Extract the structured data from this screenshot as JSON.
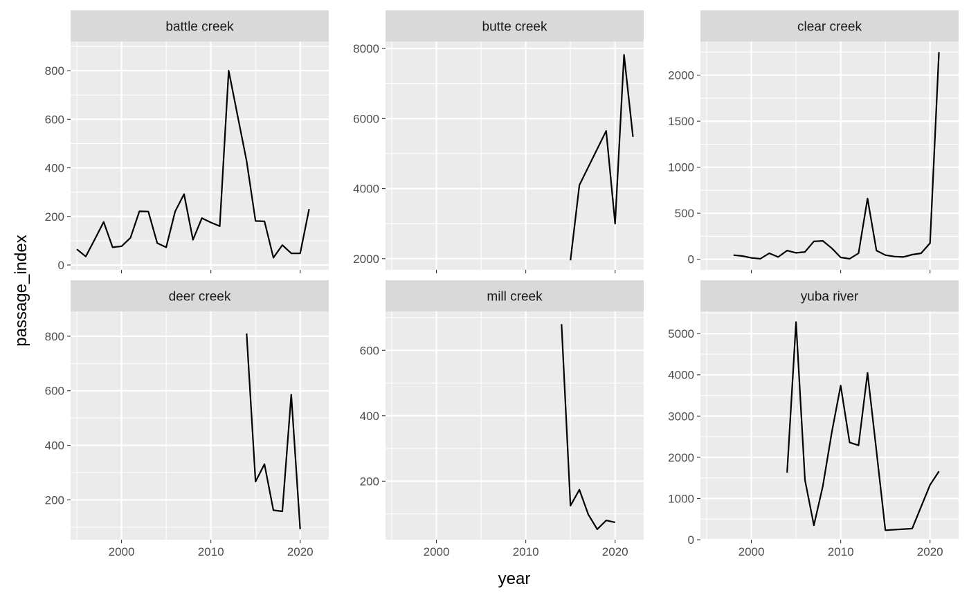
{
  "chart_data": {
    "type": "line",
    "layout": "facet_wrap",
    "xlabel": "year",
    "ylabel": "passage_index",
    "x_ticks": [
      2000,
      2010,
      2020
    ],
    "xlim": [
      1994.3,
      2023.2
    ],
    "grid": true,
    "colors": {
      "panel_bg": "#ebebeb",
      "strip_bg": "#d9d9d9",
      "grid": "#ffffff",
      "line": "#000000"
    },
    "panels": [
      {
        "title": "battle creek",
        "ylim": [
          -20,
          920
        ],
        "y_ticks": [
          0,
          200,
          400,
          600,
          800
        ],
        "series": [
          {
            "x": [
              1995,
              1996,
              1997,
              1998,
              1999,
              2000,
              2001,
              2002,
              2003,
              2004,
              2005,
              2006,
              2007,
              2008,
              2009,
              2010,
              2011,
              2012,
              2013,
              2014,
              2015,
              2016,
              2017,
              2018,
              2019,
              2020,
              2021
            ],
            "y": [
              65,
              35,
              105,
              177,
              73,
              77,
              112,
              221,
              220,
              90,
              73,
              220,
              292,
              104,
              193,
              175,
              160,
              800,
              613,
              428,
              181,
              180,
              30,
              82,
              48,
              48,
              230
            ]
          }
        ]
      },
      {
        "title": "butte creek",
        "ylim": [
          1680,
          8200
        ],
        "y_ticks": [
          2000,
          4000,
          6000,
          8000
        ],
        "series": [
          {
            "x": [
              2015,
              2016,
              2019,
              2020,
              2021,
              2022
            ],
            "y": [
              1950,
              4100,
              5650,
              3000,
              7820,
              5480
            ]
          }
        ]
      },
      {
        "title": "clear creek",
        "ylim": [
          -115,
          2365
        ],
        "y_ticks": [
          0,
          500,
          1000,
          1500,
          2000
        ],
        "series": [
          {
            "x": [
              1998,
              1999,
              2000,
              2001,
              2002,
              2003,
              2004,
              2005,
              2006,
              2007,
              2008,
              2009,
              2010,
              2011,
              2012,
              2013,
              2014,
              2015,
              2016,
              2017,
              2018,
              2019,
              2020,
              2021
            ],
            "y": [
              45,
              35,
              15,
              5,
              65,
              25,
              95,
              70,
              80,
              195,
              200,
              120,
              20,
              5,
              65,
              660,
              95,
              45,
              30,
              25,
              50,
              65,
              175,
              2250
            ]
          }
        ]
      },
      {
        "title": "deer creek",
        "ylim": [
          54,
          891
        ],
        "y_ticks": [
          200,
          400,
          600,
          800
        ],
        "series": [
          {
            "x": [
              2014,
              2015,
              2016,
              2017,
              2018,
              2019,
              2020
            ],
            "y": [
              810,
              267,
              331,
              162,
              158,
              586,
              92
            ]
          }
        ]
      },
      {
        "title": "mill creek",
        "ylim": [
          21,
          719
        ],
        "y_ticks": [
          200,
          400,
          600
        ],
        "series": [
          {
            "x": [
              2014,
              2015,
              2016,
              2017,
              2018,
              2019,
              2020
            ],
            "y": [
              680,
              125,
              174,
              98,
              53,
              80,
              74
            ]
          }
        ]
      },
      {
        "title": "yuba river",
        "ylim": [
          0,
          5540
        ],
        "y_ticks": [
          0,
          1000,
          2000,
          3000,
          4000,
          5000
        ],
        "series": [
          {
            "x": [
              2004,
              2005,
              2006,
              2007,
              2008,
              2009,
              2010,
              2011,
              2012,
              2013,
              2014,
              2015,
              2018,
              2019,
              2020,
              2021
            ],
            "y": [
              1630,
              5280,
              1450,
              350,
              1300,
              2600,
              3740,
              2360,
              2290,
              4050,
              2150,
              230,
              270,
              800,
              1330,
              1660
            ]
          }
        ]
      }
    ]
  }
}
